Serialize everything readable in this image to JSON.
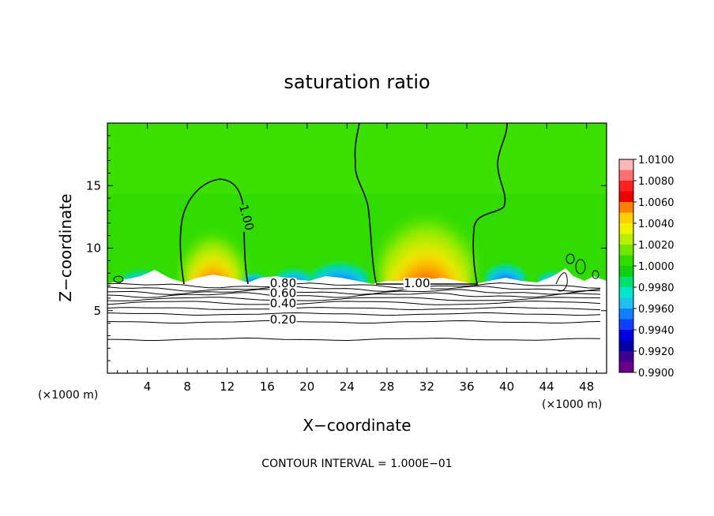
{
  "chart_data": {
    "type": "heatmap",
    "title": "saturation ratio",
    "xlabel": "X−coordinate",
    "ylabel": "Z−coordinate",
    "x_unit_left": "(×1000 m)",
    "x_unit_right": "(×1000 m)",
    "footer": "CONTOUR INTERVAL = 1.000E−01",
    "xlim": [
      0,
      50
    ],
    "ylim": [
      0,
      20
    ],
    "x_ticks": [
      4,
      8,
      12,
      16,
      20,
      24,
      28,
      32,
      36,
      40,
      44,
      48
    ],
    "y_ticks": [
      5,
      10,
      15
    ],
    "grid": false,
    "colorbar": {
      "position": "right",
      "levels": [
        "1.0100",
        "1.0080",
        "1.0060",
        "1.0040",
        "1.0020",
        "1.0000",
        "0.9980",
        "0.9960",
        "0.9940",
        "0.9920",
        "0.9900"
      ],
      "colors": [
        "#ffb8b8",
        "#ff7070",
        "#ff2020",
        "#ee0000",
        "#ff8000",
        "#ffd000",
        "#f0f000",
        "#b8f000",
        "#70e800",
        "#30dc00",
        "#10d010",
        "#00e070",
        "#00e8c8",
        "#20c0f0",
        "#1080ff",
        "#1040ff",
        "#0000e0",
        "#0000a8",
        "#400090",
        "#6a008a"
      ]
    },
    "contour_labels": [
      {
        "text": "1.00",
        "x": 13.7,
        "z": 12.4,
        "rotate": 75
      },
      {
        "text": "1.00",
        "x": 31.0,
        "z": 7.0,
        "rotate": 0
      },
      {
        "text": "0.80",
        "x": 17.6,
        "z": 7.0,
        "rotate": 0
      },
      {
        "text": "0.60",
        "x": 17.6,
        "z": 6.2,
        "rotate": 0
      },
      {
        "text": "0.40",
        "x": 17.6,
        "z": 5.4,
        "rotate": 0
      },
      {
        "text": "0.20",
        "x": 17.6,
        "z": 4.1,
        "rotate": 0
      }
    ]
  }
}
